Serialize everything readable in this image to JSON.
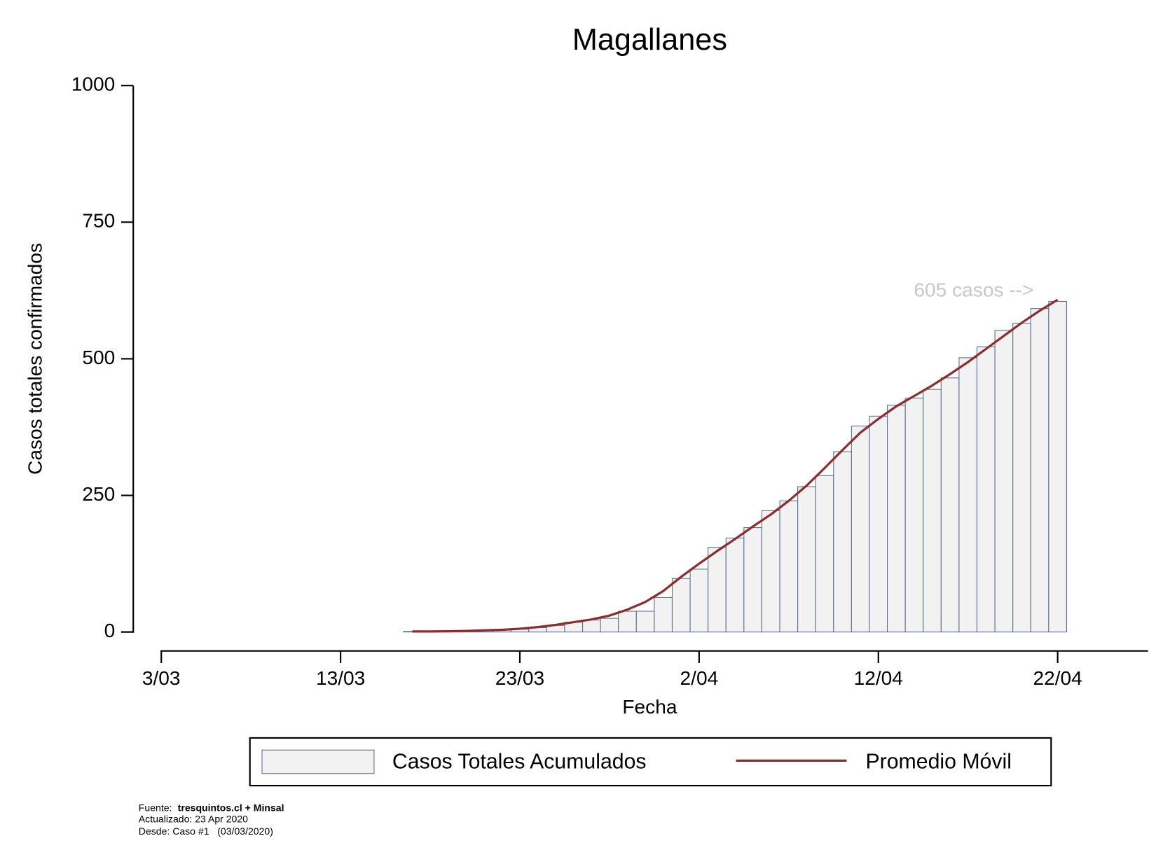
{
  "chart_data": {
    "type": "bar-line",
    "title": "Magallanes",
    "x_label": "Fecha",
    "y_label": "Casos totales confirmados",
    "x": [
      "17/03",
      "18/03",
      "19/03",
      "20/03",
      "21/03",
      "22/03",
      "23/03",
      "24/03",
      "25/03",
      "26/03",
      "27/03",
      "28/03",
      "29/03",
      "30/03",
      "31/03",
      "1/04",
      "2/04",
      "3/04",
      "4/04",
      "5/04",
      "6/04",
      "7/04",
      "8/04",
      "9/04",
      "10/04",
      "11/04",
      "12/04",
      "13/04",
      "14/04",
      "15/04",
      "16/04",
      "17/04",
      "18/04",
      "19/04",
      "20/04",
      "21/04",
      "22/04"
    ],
    "series": [
      {
        "name": "Casos Totales Acumulados",
        "type": "bar",
        "color": "#f2f2f2",
        "edge_color": "#5b6f8f",
        "values": [
          1,
          1,
          1,
          2,
          3,
          4,
          5,
          8,
          12,
          18,
          22,
          25,
          38,
          38,
          63,
          98,
          115,
          155,
          172,
          191,
          222,
          240,
          266,
          286,
          330,
          377,
          395,
          415,
          428,
          444,
          465,
          502,
          522,
          552,
          565,
          592,
          605
        ]
      },
      {
        "name": "Promedio Móvil",
        "type": "line",
        "color": "#8b2e2e",
        "values": [
          1,
          1,
          1.3,
          2,
          3,
          4,
          6,
          9,
          13,
          18,
          23,
          30,
          41,
          55,
          75,
          101,
          125,
          148,
          170,
          193,
          215,
          240,
          268,
          300,
          333,
          365,
          390,
          413,
          432,
          451,
          472,
          494,
          518,
          542,
          566,
          588,
          608
        ]
      }
    ],
    "xlim": [
      "3/03",
      "27/04"
    ],
    "xticks": [
      "3/03",
      "13/03",
      "23/03",
      "2/04",
      "12/04",
      "22/04"
    ],
    "ylim": [
      0,
      1000
    ],
    "yticks": [
      0,
      250,
      500,
      750,
      1000
    ],
    "annotation": "605 casos -->",
    "footer": {
      "source_label": "Fuente:",
      "source": "tresquintos.cl + Minsal",
      "updated": "Actualizado: 23 Apr 2020",
      "since": "Desde: Caso #1   (03/03/2020)"
    }
  }
}
